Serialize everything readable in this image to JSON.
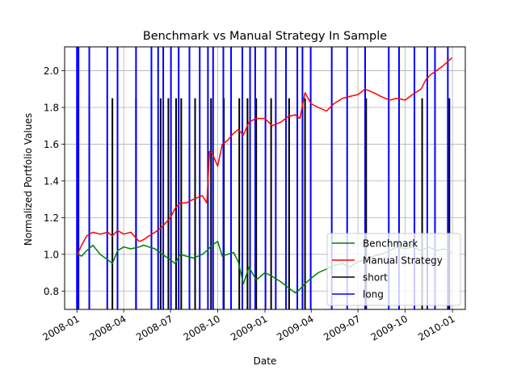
{
  "chart_data": {
    "type": "line",
    "title": "Benchmark vs Manual Strategy In Sample",
    "xlabel": "Date",
    "ylabel": "Normalized Portfolio Values",
    "xlim": [
      "2007-12-08",
      "2010-01-26"
    ],
    "ylim": [
      0.7,
      2.13
    ],
    "grid": true,
    "legend_position": "bottom-right",
    "x_ticks": [
      "2008-01-01",
      "2008-04-01",
      "2008-07-01",
      "2008-10-01",
      "2009-01-01",
      "2009-04-01",
      "2009-07-01",
      "2009-10-01",
      "2010-01-01"
    ],
    "x_tick_labels": [
      "2008-01",
      "2008-04",
      "2008-07",
      "2008-10",
      "2009-01",
      "2009-04",
      "2009-07",
      "2009-10",
      "2010-01"
    ],
    "y_ticks": [
      0.8,
      1.0,
      1.2,
      1.4,
      1.6,
      1.8,
      2.0
    ],
    "y_tick_labels": [
      "0.8",
      "1.0",
      "1.2",
      "1.4",
      "1.6",
      "1.8",
      "2.0"
    ],
    "series": [
      {
        "name": "Benchmark",
        "color": "#008000",
        "x": [
          "2008-01-02",
          "2008-01-10",
          "2008-01-20",
          "2008-02-01",
          "2008-02-15",
          "2008-03-01",
          "2008-03-10",
          "2008-03-20",
          "2008-04-01",
          "2008-04-15",
          "2008-05-01",
          "2008-05-10",
          "2008-05-20",
          "2008-06-01",
          "2008-06-15",
          "2008-07-01",
          "2008-07-10",
          "2008-07-20",
          "2008-08-01",
          "2008-08-15",
          "2008-09-01",
          "2008-09-10",
          "2008-09-20",
          "2008-10-01",
          "2008-10-10",
          "2008-10-20",
          "2008-11-01",
          "2008-11-10",
          "2008-11-20",
          "2008-12-01",
          "2008-12-15",
          "2009-01-01",
          "2009-01-15",
          "2009-02-01",
          "2009-02-15",
          "2009-03-01",
          "2009-03-10",
          "2009-03-20",
          "2009-04-01",
          "2009-04-15",
          "2009-05-01",
          "2009-05-15",
          "2009-06-01",
          "2009-06-15",
          "2009-07-01",
          "2009-07-15",
          "2009-08-01",
          "2009-08-15",
          "2009-09-01",
          "2009-09-15",
          "2009-10-01",
          "2009-10-15",
          "2009-11-01",
          "2009-11-15",
          "2009-12-01",
          "2009-12-15",
          "2009-12-31"
        ],
        "y": [
          1.0,
          0.99,
          1.02,
          1.05,
          1.0,
          0.97,
          0.95,
          1.02,
          1.04,
          1.03,
          1.04,
          1.05,
          1.04,
          1.03,
          1.0,
          0.97,
          0.95,
          1.0,
          0.99,
          0.98,
          1.0,
          1.02,
          1.05,
          1.07,
          0.99,
          1.0,
          1.01,
          0.96,
          0.84,
          0.93,
          0.86,
          0.9,
          0.88,
          0.85,
          0.82,
          0.79,
          0.81,
          0.84,
          0.87,
          0.9,
          0.92,
          0.94,
          0.95,
          0.93,
          0.96,
          0.97,
          0.99,
          1.0,
          1.02,
          1.04,
          1.03,
          1.04,
          1.02,
          1.04,
          1.02,
          1.03,
          1.01
        ]
      },
      {
        "name": "Manual Strategy",
        "color": "#ff0000",
        "x": [
          "2008-01-02",
          "2008-01-10",
          "2008-01-20",
          "2008-02-01",
          "2008-02-15",
          "2008-03-01",
          "2008-03-10",
          "2008-03-20",
          "2008-04-01",
          "2008-04-15",
          "2008-05-01",
          "2008-05-10",
          "2008-05-20",
          "2008-06-01",
          "2008-06-15",
          "2008-07-01",
          "2008-07-10",
          "2008-07-20",
          "2008-08-01",
          "2008-08-15",
          "2008-09-01",
          "2008-09-10",
          "2008-09-15",
          "2008-09-20",
          "2008-10-01",
          "2008-10-10",
          "2008-10-20",
          "2008-11-01",
          "2008-11-10",
          "2008-11-20",
          "2008-12-01",
          "2008-12-15",
          "2009-01-01",
          "2009-01-15",
          "2009-02-01",
          "2009-02-15",
          "2009-03-01",
          "2009-03-10",
          "2009-03-20",
          "2009-04-01",
          "2009-04-15",
          "2009-05-01",
          "2009-05-15",
          "2009-06-01",
          "2009-06-15",
          "2009-07-01",
          "2009-07-15",
          "2009-08-01",
          "2009-08-15",
          "2009-09-01",
          "2009-09-15",
          "2009-10-01",
          "2009-10-15",
          "2009-11-01",
          "2009-11-10",
          "2009-11-20",
          "2009-12-01",
          "2009-12-15",
          "2009-12-31"
        ],
        "y": [
          1.0,
          1.05,
          1.1,
          1.12,
          1.11,
          1.12,
          1.1,
          1.13,
          1.11,
          1.12,
          1.07,
          1.08,
          1.1,
          1.12,
          1.15,
          1.2,
          1.25,
          1.28,
          1.28,
          1.3,
          1.32,
          1.28,
          1.56,
          1.55,
          1.48,
          1.6,
          1.62,
          1.66,
          1.68,
          1.65,
          1.72,
          1.74,
          1.74,
          1.7,
          1.72,
          1.75,
          1.76,
          1.74,
          1.88,
          1.82,
          1.8,
          1.78,
          1.82,
          1.85,
          1.86,
          1.87,
          1.9,
          1.88,
          1.86,
          1.84,
          1.85,
          1.84,
          1.87,
          1.9,
          1.95,
          1.98,
          2.0,
          2.03,
          2.07
        ]
      },
      {
        "name": "short",
        "color": "#000000",
        "dates": [
          "2008-01-02",
          "2008-01-25",
          "2008-03-10",
          "2008-03-20",
          "2008-04-25",
          "2008-05-25",
          "2008-06-12",
          "2008-06-27",
          "2008-07-12",
          "2008-07-22",
          "2008-08-18",
          "2008-09-18",
          "2008-10-13",
          "2008-11-12",
          "2008-11-28",
          "2008-12-15",
          "2009-01-13",
          "2009-02-17",
          "2009-03-20",
          "2009-07-17",
          "2009-11-03",
          "2009-12-26"
        ]
      },
      {
        "name": "long",
        "color": "#0000ff",
        "dates": [
          "2008-01-01",
          "2008-01-04",
          "2008-01-25",
          "2008-02-29",
          "2008-03-20",
          "2008-04-25",
          "2008-05-25",
          "2008-06-07",
          "2008-06-17",
          "2008-07-02",
          "2008-07-17",
          "2008-08-07",
          "2008-08-27",
          "2008-09-12",
          "2008-09-22",
          "2008-10-12",
          "2008-10-27",
          "2008-11-18",
          "2008-12-03",
          "2008-12-13",
          "2009-01-02",
          "2009-01-22",
          "2009-02-11",
          "2009-03-05",
          "2009-03-15",
          "2009-03-31",
          "2009-05-11",
          "2009-06-10",
          "2009-07-15",
          "2009-08-30",
          "2009-09-19",
          "2009-10-19",
          "2009-11-13",
          "2009-11-28",
          "2009-12-23"
        ]
      }
    ],
    "legend": [
      "Benchmark",
      "Manual Strategy",
      "short",
      "long"
    ],
    "signal_marker_top": 1.85
  }
}
